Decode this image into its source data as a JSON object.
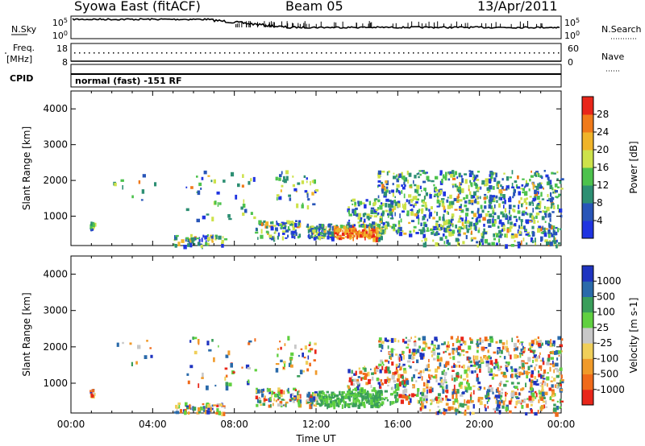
{
  "header": {
    "title": "Syowa East (fitACF)",
    "beam": "Beam 05",
    "date": "13/Apr/2011"
  },
  "top_panels": {
    "nsky": {
      "label": "N.Sky",
      "ticks": [
        "10^5",
        "10^0"
      ]
    },
    "nsearch": {
      "label": "N.Search",
      "ticks": [
        "10^5",
        "10^0"
      ]
    },
    "freq": {
      "label_lines": [
        "Freq.",
        "[MHz]"
      ],
      "ticks": [
        "18",
        "8"
      ]
    },
    "nave": {
      "label": "Nave",
      "ticks": [
        "60",
        "0"
      ]
    },
    "cpid": {
      "label": "CPID",
      "mode": "normal (fast) -151 RF"
    }
  },
  "colors": {
    "power": [
      "#1f34e0",
      "#2855b8",
      "#2d8f73",
      "#4dc24d",
      "#cde24a",
      "#f0b42a",
      "#f07a1a",
      "#e8261a"
    ],
    "velocity": [
      "#e8261a",
      "#f06a1a",
      "#f09a2a",
      "#f0cf5a",
      "#c8c8c8",
      "#60d040",
      "#3a9e5a",
      "#2a6aaa",
      "#1f34c0"
    ]
  },
  "chart_data": [
    {
      "type": "heatmap",
      "panel": "power",
      "ylabel": "Slant Range [km]",
      "ylim": [
        180,
        4500
      ],
      "yticks": [
        1000,
        2000,
        3000,
        4000
      ],
      "xlim": [
        0,
        24
      ],
      "colorbar": {
        "label": "Power [dB]",
        "ticks": [
          "4",
          "8",
          "12",
          "16",
          "20",
          "24",
          "28"
        ],
        "range": [
          0,
          32
        ]
      }
    },
    {
      "type": "heatmap",
      "panel": "velocity",
      "ylabel": "Slant Range [km]",
      "ylim": [
        180,
        4500
      ],
      "yticks": [
        1000,
        2000,
        3000,
        4000
      ],
      "xlim": [
        0,
        24
      ],
      "colorbar": {
        "label": "Velocity [m s-1]",
        "ticks": [
          "1000",
          "500",
          "100",
          "25",
          "-25",
          "-100",
          "-500",
          "-1000"
        ]
      }
    }
  ],
  "time_axis": {
    "label": "Time UT",
    "ticks": [
      "00:00",
      "04:00",
      "08:00",
      "12:00",
      "16:00",
      "20:00",
      "00:00"
    ]
  }
}
